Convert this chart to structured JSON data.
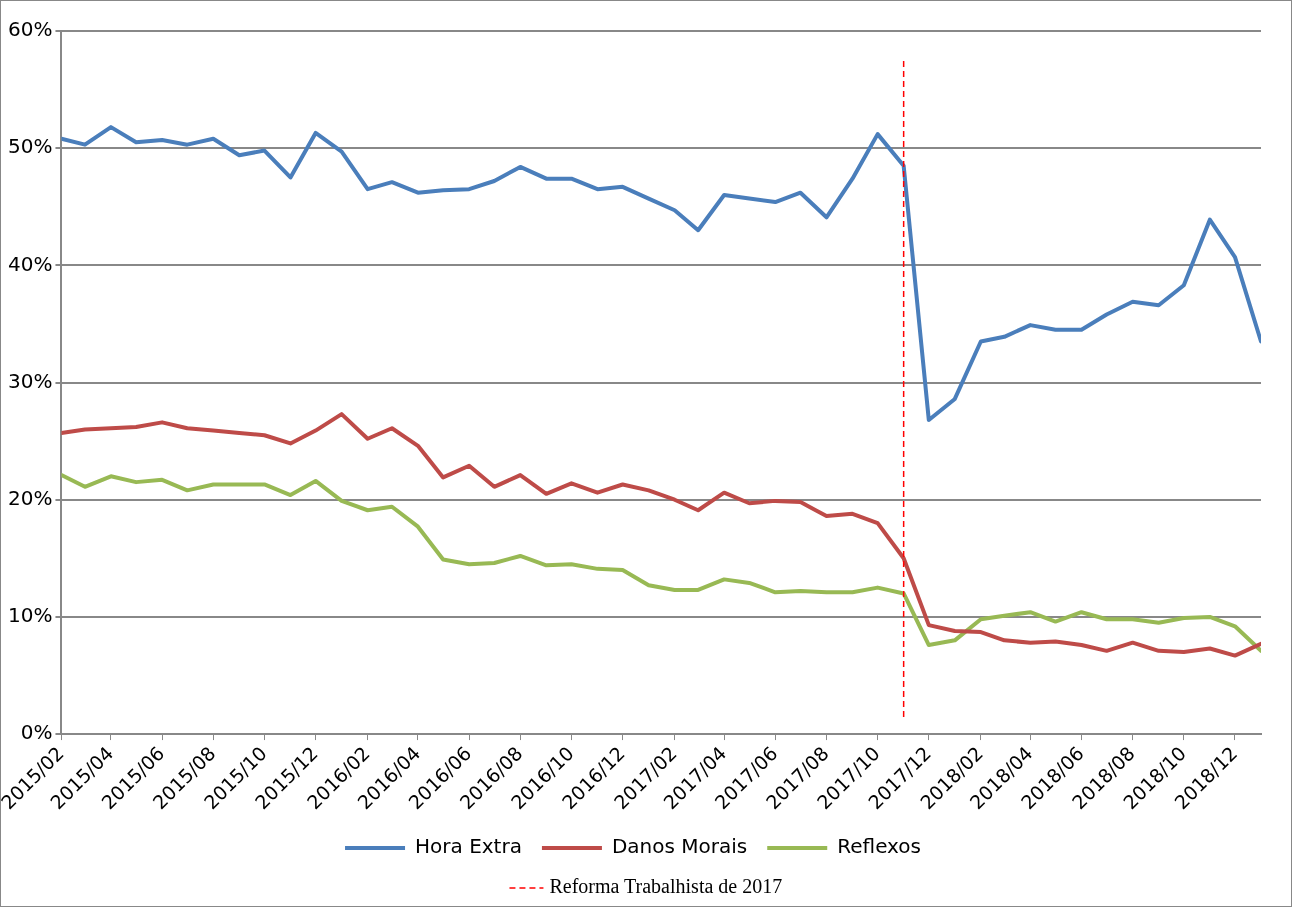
{
  "chart_data": {
    "type": "line",
    "x": [
      "2015-02",
      "2015-03",
      "2015-04",
      "2015-05",
      "2015-06",
      "2015-07",
      "2015-08",
      "2015-09",
      "2015-10",
      "2015-11",
      "2015-12",
      "2016-01",
      "2016-02",
      "2016-03",
      "2016-04",
      "2016-05",
      "2016-06",
      "2016-07",
      "2016-08",
      "2016-09",
      "2016-10",
      "2016-11",
      "2016-12",
      "2017-01",
      "2017-02",
      "2017-03",
      "2017-04",
      "2017-05",
      "2017-06",
      "2017-07",
      "2017-08",
      "2017-09",
      "2017-10",
      "2017-11",
      "2017-12",
      "2018-01",
      "2018-02",
      "2018-03",
      "2018-04",
      "2018-05",
      "2018-06",
      "2018-07",
      "2018-08",
      "2018-09",
      "2018-10",
      "2018-11",
      "2018-12",
      "2019-01"
    ],
    "series": [
      {
        "name": "Hora Extra",
        "color": "#4a7ebb",
        "values": [
          50.8,
          50.3,
          51.8,
          50.5,
          50.7,
          50.3,
          50.8,
          49.4,
          49.8,
          47.5,
          51.3,
          49.7,
          46.5,
          47.1,
          46.2,
          46.4,
          46.5,
          47.2,
          48.4,
          47.4,
          47.4,
          46.5,
          46.7,
          45.7,
          44.7,
          43.0,
          46.0,
          45.7,
          45.4,
          46.2,
          44.1,
          47.4,
          51.2,
          48.5,
          26.8,
          28.6,
          33.5,
          33.9,
          34.9,
          34.5,
          34.5,
          35.8,
          36.9,
          36.6,
          38.3,
          43.9,
          40.7,
          33.5
        ]
      },
      {
        "name": "Danos Morais",
        "color": "#be4b48",
        "values": [
          25.7,
          26.0,
          26.1,
          26.2,
          26.6,
          26.1,
          25.9,
          25.7,
          25.5,
          24.8,
          25.9,
          27.3,
          25.2,
          26.1,
          24.6,
          21.9,
          22.9,
          21.1,
          22.1,
          20.5,
          21.4,
          20.6,
          21.3,
          20.8,
          20.0,
          19.1,
          20.6,
          19.7,
          19.9,
          19.8,
          18.6,
          18.8,
          18.0,
          15.0,
          9.3,
          8.8,
          8.7,
          8.0,
          7.8,
          7.9,
          7.6,
          7.1,
          7.8,
          7.1,
          7.0,
          7.3,
          6.7,
          7.7
        ]
      },
      {
        "name": "Reflexos",
        "color": "#98b954",
        "values": [
          22.1,
          21.1,
          22.0,
          21.5,
          21.7,
          20.8,
          21.3,
          21.3,
          21.3,
          20.4,
          21.6,
          19.9,
          19.1,
          19.4,
          17.7,
          14.9,
          14.5,
          14.6,
          15.2,
          14.4,
          14.5,
          14.1,
          14.0,
          12.7,
          12.3,
          12.3,
          13.2,
          12.9,
          12.1,
          12.2,
          12.1,
          12.1,
          12.5,
          12.0,
          7.6,
          8.0,
          9.8,
          10.1,
          10.4,
          9.6,
          10.4,
          9.8,
          9.8,
          9.5,
          9.9,
          10.0,
          9.2,
          7.1
        ]
      }
    ],
    "xlim": [
      "2015-02",
      "2019-01"
    ],
    "xticks": [
      {
        "value": "2015-02",
        "label": "2015/02"
      },
      {
        "value": "2015-04",
        "label": "2015/04"
      },
      {
        "value": "2015-06",
        "label": "2015/06"
      },
      {
        "value": "2015-08",
        "label": "2015/08"
      },
      {
        "value": "2015-10",
        "label": "2015/10"
      },
      {
        "value": "2015-12",
        "label": "2015/12"
      },
      {
        "value": "2016-02",
        "label": "2016/02"
      },
      {
        "value": "2016-04",
        "label": "2016/04"
      },
      {
        "value": "2016-06",
        "label": "2016/06"
      },
      {
        "value": "2016-08",
        "label": "2016/08"
      },
      {
        "value": "2016-10",
        "label": "2016/10"
      },
      {
        "value": "2016-12",
        "label": "2016/12"
      },
      {
        "value": "2017-02",
        "label": "2017/02"
      },
      {
        "value": "2017-04",
        "label": "2017/04"
      },
      {
        "value": "2017-06",
        "label": "2017/06"
      },
      {
        "value": "2017-08",
        "label": "2017/08"
      },
      {
        "value": "2017-10",
        "label": "2017/10"
      },
      {
        "value": "2017-12",
        "label": "2017/12"
      },
      {
        "value": "2018-02",
        "label": "2018/02"
      },
      {
        "value": "2018-04",
        "label": "2018/04"
      },
      {
        "value": "2018-06",
        "label": "2018/06"
      },
      {
        "value": "2018-08",
        "label": "2018/08"
      },
      {
        "value": "2018-10",
        "label": "2018/10"
      },
      {
        "value": "2018-12",
        "label": "2018/12"
      }
    ],
    "ylim": [
      0,
      60
    ],
    "yticks": [
      {
        "value": 0,
        "label": "0%"
      },
      {
        "value": 10,
        "label": "10%"
      },
      {
        "value": 20,
        "label": "20%"
      },
      {
        "value": 30,
        "label": "30%"
      },
      {
        "value": 40,
        "label": "40%"
      },
      {
        "value": 50,
        "label": "50%"
      },
      {
        "value": 60,
        "label": "60%"
      }
    ],
    "ref_lines": [
      {
        "axis": "x",
        "value": "2017-11",
        "label": "Reforma Trabalhista de 2017",
        "color": "#ff0000",
        "line_style": "dashed"
      }
    ],
    "grid": "y",
    "legend": "bottom",
    "marker": "none",
    "line_style": "solid"
  }
}
